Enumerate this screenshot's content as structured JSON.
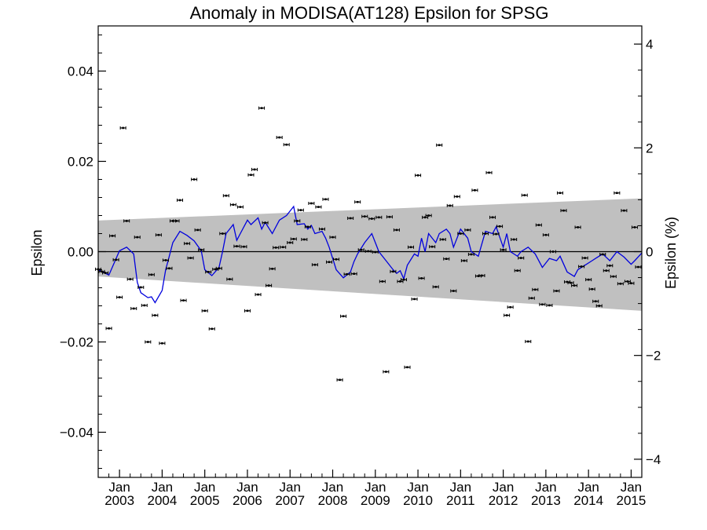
{
  "chart_data": {
    "type": "scatter",
    "title": "Anomaly in MODISA(AT128) Epsilon for SPSG",
    "ylabel_left": "Epsilon",
    "ylabel_right": "Epsilon (%)",
    "ylim": [
      -0.05,
      0.05
    ],
    "ylim_right_percent": [
      -4.35,
      4.35
    ],
    "xlim": [
      "2002-07",
      "2015-04"
    ],
    "left_ticks": [
      {
        "value": 0.04,
        "label": "0.04"
      },
      {
        "value": 0.02,
        "label": "0.02"
      },
      {
        "value": 0.0,
        "label": "0.00"
      },
      {
        "value": -0.02,
        "label": "−0.02"
      },
      {
        "value": -0.04,
        "label": "−0.04"
      }
    ],
    "right_ticks": [
      {
        "value": 4,
        "label": "4"
      },
      {
        "value": 2,
        "label": "2"
      },
      {
        "value": 0,
        "label": "0"
      },
      {
        "value": -2,
        "label": "−2"
      },
      {
        "value": -4,
        "label": "−4"
      }
    ],
    "x_ticks": [
      {
        "date": "2003-01",
        "month": "Jan",
        "year": "2003"
      },
      {
        "date": "2004-01",
        "month": "Jan",
        "year": "2004"
      },
      {
        "date": "2005-01",
        "month": "Jan",
        "year": "2005"
      },
      {
        "date": "2006-01",
        "month": "Jan",
        "year": "2006"
      },
      {
        "date": "2007-01",
        "month": "Jan",
        "year": "2007"
      },
      {
        "date": "2008-01",
        "month": "Jan",
        "year": "2008"
      },
      {
        "date": "2009-01",
        "month": "Jan",
        "year": "2009"
      },
      {
        "date": "2010-01",
        "month": "Jan",
        "year": "2010"
      },
      {
        "date": "2011-01",
        "month": "Jan",
        "year": "2011"
      },
      {
        "date": "2012-01",
        "month": "Jan",
        "year": "2012"
      },
      {
        "date": "2013-01",
        "month": "Jan",
        "year": "2013"
      },
      {
        "date": "2014-01",
        "month": "Jan",
        "year": "2014"
      },
      {
        "date": "2015-01",
        "month": "Jan",
        "year": "2015"
      }
    ],
    "band": {
      "color": "#c0c0c0",
      "start": {
        "x": "2002-07",
        "upper": 0.0069,
        "lower": -0.0055
      },
      "end": {
        "x": "2015-04",
        "upper": 0.0118,
        "lower": -0.0131
      }
    },
    "zero_line": 0.0,
    "colors": {
      "points": "#000000",
      "smooth_line": "#0000dd",
      "band": "#c0c0c0"
    },
    "points": [
      {
        "x": "2002-07",
        "y": -0.0039
      },
      {
        "x": "2002-08",
        "y": -0.0044
      },
      {
        "x": "2002-09",
        "y": -0.0047
      },
      {
        "x": "2002-10",
        "y": -0.017
      },
      {
        "x": "2002-11",
        "y": 0.0035
      },
      {
        "x": "2002-12",
        "y": -0.0018
      },
      {
        "x": "2003-01",
        "y": -0.0101
      },
      {
        "x": "2003-02",
        "y": 0.0274
      },
      {
        "x": "2003-03",
        "y": 0.0068
      },
      {
        "x": "2003-04",
        "y": -0.0061
      },
      {
        "x": "2003-05",
        "y": -0.0126
      },
      {
        "x": "2003-06",
        "y": 0.0032
      },
      {
        "x": "2003-07",
        "y": -0.0079
      },
      {
        "x": "2003-08",
        "y": -0.0119
      },
      {
        "x": "2003-09",
        "y": -0.02
      },
      {
        "x": "2003-10",
        "y": -0.0051
      },
      {
        "x": "2003-11",
        "y": -0.0141
      },
      {
        "x": "2003-12",
        "y": 0.0037
      },
      {
        "x": "2004-01",
        "y": -0.0203
      },
      {
        "x": "2004-02",
        "y": -0.0019
      },
      {
        "x": "2004-03",
        "y": -0.0037
      },
      {
        "x": "2004-04",
        "y": 0.0068
      },
      {
        "x": "2004-05",
        "y": 0.0068
      },
      {
        "x": "2004-06",
        "y": 0.0114
      },
      {
        "x": "2004-07",
        "y": -0.0108
      },
      {
        "x": "2004-08",
        "y": 0.0018
      },
      {
        "x": "2004-09",
        "y": -0.0014
      },
      {
        "x": "2004-10",
        "y": 0.016
      },
      {
        "x": "2004-11",
        "y": 0.0048
      },
      {
        "x": "2004-12",
        "y": 0.0004
      },
      {
        "x": "2005-01",
        "y": -0.0131
      },
      {
        "x": "2005-02",
        "y": -0.0045
      },
      {
        "x": "2005-03",
        "y": -0.0171
      },
      {
        "x": "2005-04",
        "y": -0.0039
      },
      {
        "x": "2005-05",
        "y": -0.0037
      },
      {
        "x": "2005-06",
        "y": 0.004
      },
      {
        "x": "2005-07",
        "y": 0.0124
      },
      {
        "x": "2005-08",
        "y": -0.0061
      },
      {
        "x": "2005-09",
        "y": 0.0104
      },
      {
        "x": "2005-10",
        "y": 0.0012
      },
      {
        "x": "2005-11",
        "y": 0.0099
      },
      {
        "x": "2005-12",
        "y": 0.0011
      },
      {
        "x": "2006-01",
        "y": -0.0131
      },
      {
        "x": "2006-02",
        "y": 0.017
      },
      {
        "x": "2006-03",
        "y": 0.0182
      },
      {
        "x": "2006-04",
        "y": -0.0095
      },
      {
        "x": "2006-05",
        "y": 0.0318
      },
      {
        "x": "2006-06",
        "y": 0.0064
      },
      {
        "x": "2006-07",
        "y": -0.0075
      },
      {
        "x": "2006-08",
        "y": -0.0038
      },
      {
        "x": "2006-09",
        "y": 0.0009
      },
      {
        "x": "2006-10",
        "y": 0.0253
      },
      {
        "x": "2006-11",
        "y": 0.001
      },
      {
        "x": "2006-12",
        "y": 0.0237
      },
      {
        "x": "2007-01",
        "y": 0.002
      },
      {
        "x": "2007-02",
        "y": 0.0028
      },
      {
        "x": "2007-03",
        "y": 0.0068
      },
      {
        "x": "2007-04",
        "y": 0.0092
      },
      {
        "x": "2007-05",
        "y": 0.0027
      },
      {
        "x": "2007-06",
        "y": 0.0055
      },
      {
        "x": "2007-07",
        "y": 0.0107
      },
      {
        "x": "2007-08",
        "y": -0.0029
      },
      {
        "x": "2007-09",
        "y": 0.0099
      },
      {
        "x": "2007-10",
        "y": 0.005
      },
      {
        "x": "2007-11",
        "y": 0.0116
      },
      {
        "x": "2007-12",
        "y": -0.0023
      },
      {
        "x": "2008-01",
        "y": 0.0032
      },
      {
        "x": "2008-02",
        "y": -0.0017
      },
      {
        "x": "2008-03",
        "y": -0.0284
      },
      {
        "x": "2008-04",
        "y": -0.0143
      },
      {
        "x": "2008-05",
        "y": -0.005
      },
      {
        "x": "2008-06",
        "y": 0.0074
      },
      {
        "x": "2008-07",
        "y": -0.0049
      },
      {
        "x": "2008-08",
        "y": 0.011
      },
      {
        "x": "2008-09",
        "y": 0.0004
      },
      {
        "x": "2008-10",
        "y": 0.0078
      },
      {
        "x": "2008-11",
        "y": 0.0001
      },
      {
        "x": "2008-12",
        "y": 0.0073
      },
      {
        "x": "2009-01",
        "y": -0.0001
      },
      {
        "x": "2009-02",
        "y": 0.0076
      },
      {
        "x": "2009-03",
        "y": -0.0066
      },
      {
        "x": "2009-04",
        "y": -0.0266
      },
      {
        "x": "2009-05",
        "y": 0.0077
      },
      {
        "x": "2009-06",
        "y": -0.0044
      },
      {
        "x": "2009-07",
        "y": 0.0048
      },
      {
        "x": "2009-08",
        "y": -0.0066
      },
      {
        "x": "2009-09",
        "y": -0.0062
      },
      {
        "x": "2009-10",
        "y": -0.0256
      },
      {
        "x": "2009-11",
        "y": 0.001
      },
      {
        "x": "2009-12",
        "y": -0.0105
      },
      {
        "x": "2010-01",
        "y": 0.0169
      },
      {
        "x": "2010-02",
        "y": -0.0059
      },
      {
        "x": "2010-03",
        "y": 0.0076
      },
      {
        "x": "2010-04",
        "y": 0.008
      },
      {
        "x": "2010-05",
        "y": 0.0011
      },
      {
        "x": "2010-06",
        "y": -0.0078
      },
      {
        "x": "2010-07",
        "y": 0.0236
      },
      {
        "x": "2010-08",
        "y": 0.0027
      },
      {
        "x": "2010-09",
        "y": -0.0016
      },
      {
        "x": "2010-10",
        "y": 0.0102
      },
      {
        "x": "2010-11",
        "y": -0.0087
      },
      {
        "x": "2010-12",
        "y": 0.0122
      },
      {
        "x": "2011-01",
        "y": 0.004
      },
      {
        "x": "2011-02",
        "y": -0.002
      },
      {
        "x": "2011-03",
        "y": 0.0048
      },
      {
        "x": "2011-04",
        "y": -0.0006
      },
      {
        "x": "2011-05",
        "y": 0.0136
      },
      {
        "x": "2011-06",
        "y": -0.0054
      },
      {
        "x": "2011-07",
        "y": -0.0053
      },
      {
        "x": "2011-08",
        "y": 0.004
      },
      {
        "x": "2011-09",
        "y": 0.0175
      },
      {
        "x": "2011-10",
        "y": 0.0076
      },
      {
        "x": "2011-11",
        "y": 0.0039
      },
      {
        "x": "2011-12",
        "y": 0.0056
      },
      {
        "x": "2012-01",
        "y": 0.0004
      },
      {
        "x": "2012-02",
        "y": -0.0141
      },
      {
        "x": "2012-03",
        "y": -0.0123
      },
      {
        "x": "2012-04",
        "y": 0.0027
      },
      {
        "x": "2012-05",
        "y": -0.0042
      },
      {
        "x": "2012-06",
        "y": -0.0014
      },
      {
        "x": "2012-07",
        "y": 0.0125
      },
      {
        "x": "2012-08",
        "y": -0.0199
      },
      {
        "x": "2012-09",
        "y": -0.0103
      },
      {
        "x": "2012-10",
        "y": -0.0084
      },
      {
        "x": "2012-11",
        "y": 0.0059
      },
      {
        "x": "2012-12",
        "y": -0.0117
      },
      {
        "x": "2013-01",
        "y": 0.0037
      },
      {
        "x": "2013-02",
        "y": -0.0119
      },
      {
        "x": "2013-03",
        "y": 0.0
      },
      {
        "x": "2013-04",
        "y": -0.0087
      },
      {
        "x": "2013-05",
        "y": 0.013
      },
      {
        "x": "2013-06",
        "y": 0.0091
      },
      {
        "x": "2013-07",
        "y": -0.0067
      },
      {
        "x": "2013-08",
        "y": -0.0069
      },
      {
        "x": "2013-09",
        "y": -0.0075
      },
      {
        "x": "2013-10",
        "y": 0.0054
      },
      {
        "x": "2013-11",
        "y": -0.0033
      },
      {
        "x": "2013-12",
        "y": -0.0014
      },
      {
        "x": "2014-01",
        "y": -0.0062
      },
      {
        "x": "2014-02",
        "y": -0.0083
      },
      {
        "x": "2014-03",
        "y": -0.011
      },
      {
        "x": "2014-04",
        "y": -0.012
      },
      {
        "x": "2014-05",
        "y": -0.0006
      },
      {
        "x": "2014-06",
        "y": -0.0042
      },
      {
        "x": "2014-07",
        "y": -0.0031
      },
      {
        "x": "2014-08",
        "y": -0.0055
      },
      {
        "x": "2014-09",
        "y": 0.013
      },
      {
        "x": "2014-10",
        "y": -0.0071
      },
      {
        "x": "2014-11",
        "y": 0.0091
      },
      {
        "x": "2014-12",
        "y": -0.0066
      },
      {
        "x": "2015-01",
        "y": -0.007
      },
      {
        "x": "2015-02",
        "y": 0.0054
      },
      {
        "x": "2015-03",
        "y": -0.0034
      }
    ],
    "smooth": [
      {
        "x": "2002-07",
        "y": -0.004
      },
      {
        "x": "2002-10",
        "y": -0.0052
      },
      {
        "x": "2003-01",
        "y": 0.0002
      },
      {
        "x": "2003-03",
        "y": 0.001
      },
      {
        "x": "2003-05",
        "y": -0.0005
      },
      {
        "x": "2003-06",
        "y": -0.0068
      },
      {
        "x": "2003-07",
        "y": -0.0091
      },
      {
        "x": "2003-09",
        "y": -0.0102
      },
      {
        "x": "2003-10",
        "y": -0.01
      },
      {
        "x": "2003-11",
        "y": -0.0113
      },
      {
        "x": "2004-01",
        "y": -0.0086
      },
      {
        "x": "2004-02",
        "y": -0.004
      },
      {
        "x": "2004-03",
        "y": -0.001
      },
      {
        "x": "2004-04",
        "y": 0.002
      },
      {
        "x": "2004-06",
        "y": 0.0045
      },
      {
        "x": "2004-08",
        "y": 0.0036
      },
      {
        "x": "2004-10",
        "y": 0.0024
      },
      {
        "x": "2004-12",
        "y": 0.0002
      },
      {
        "x": "2005-01",
        "y": -0.004
      },
      {
        "x": "2005-03",
        "y": -0.0053
      },
      {
        "x": "2005-05",
        "y": -0.0035
      },
      {
        "x": "2005-06",
        "y": 0.0
      },
      {
        "x": "2005-07",
        "y": 0.004
      },
      {
        "x": "2005-09",
        "y": 0.006
      },
      {
        "x": "2005-10",
        "y": 0.0025
      },
      {
        "x": "2005-11",
        "y": 0.004
      },
      {
        "x": "2006-01",
        "y": 0.007
      },
      {
        "x": "2006-02",
        "y": 0.006
      },
      {
        "x": "2006-04",
        "y": 0.0075
      },
      {
        "x": "2006-05",
        "y": 0.005
      },
      {
        "x": "2006-06",
        "y": 0.0065
      },
      {
        "x": "2006-08",
        "y": 0.004
      },
      {
        "x": "2006-10",
        "y": 0.007
      },
      {
        "x": "2006-12",
        "y": 0.008
      },
      {
        "x": "2007-02",
        "y": 0.01
      },
      {
        "x": "2007-03",
        "y": 0.006
      },
      {
        "x": "2007-05",
        "y": 0.0062
      },
      {
        "x": "2007-06",
        "y": 0.005
      },
      {
        "x": "2007-07",
        "y": 0.0058
      },
      {
        "x": "2007-08",
        "y": 0.004
      },
      {
        "x": "2007-10",
        "y": 0.0045
      },
      {
        "x": "2007-11",
        "y": 0.003
      },
      {
        "x": "2007-12",
        "y": 0.001
      },
      {
        "x": "2008-02",
        "y": -0.004
      },
      {
        "x": "2008-04",
        "y": -0.0058
      },
      {
        "x": "2008-06",
        "y": -0.0045
      },
      {
        "x": "2008-07",
        "y": -0.0022
      },
      {
        "x": "2008-08",
        "y": -0.0005
      },
      {
        "x": "2008-10",
        "y": 0.002
      },
      {
        "x": "2008-12",
        "y": 0.004
      },
      {
        "x": "2009-01",
        "y": 0.002
      },
      {
        "x": "2009-02",
        "y": 0.0
      },
      {
        "x": "2009-04",
        "y": -0.002
      },
      {
        "x": "2009-06",
        "y": -0.004
      },
      {
        "x": "2009-07",
        "y": -0.0048
      },
      {
        "x": "2009-08",
        "y": -0.0042
      },
      {
        "x": "2009-09",
        "y": -0.006
      },
      {
        "x": "2009-10",
        "y": -0.003
      },
      {
        "x": "2009-12",
        "y": -0.0005
      },
      {
        "x": "2010-01",
        "y": -0.001
      },
      {
        "x": "2010-02",
        "y": 0.003
      },
      {
        "x": "2010-03",
        "y": 0.0
      },
      {
        "x": "2010-04",
        "y": 0.004
      },
      {
        "x": "2010-06",
        "y": 0.002
      },
      {
        "x": "2010-07",
        "y": 0.004
      },
      {
        "x": "2010-09",
        "y": 0.005
      },
      {
        "x": "2010-10",
        "y": 0.004
      },
      {
        "x": "2010-11",
        "y": 0.001
      },
      {
        "x": "2010-12",
        "y": 0.003
      },
      {
        "x": "2011-01",
        "y": 0.005
      },
      {
        "x": "2011-03",
        "y": 0.003
      },
      {
        "x": "2011-04",
        "y": 0.0
      },
      {
        "x": "2011-06",
        "y": -0.001
      },
      {
        "x": "2011-08",
        "y": 0.0045
      },
      {
        "x": "2011-10",
        "y": 0.004
      },
      {
        "x": "2011-11",
        "y": 0.0055
      },
      {
        "x": "2012-01",
        "y": 0.001
      },
      {
        "x": "2012-02",
        "y": 0.004
      },
      {
        "x": "2012-03",
        "y": 0.0
      },
      {
        "x": "2012-05",
        "y": -0.001
      },
      {
        "x": "2012-06",
        "y": 0.0
      },
      {
        "x": "2012-08",
        "y": 0.001
      },
      {
        "x": "2012-10",
        "y": -0.0005
      },
      {
        "x": "2012-12",
        "y": -0.0035
      },
      {
        "x": "2013-02",
        "y": -0.0015
      },
      {
        "x": "2013-04",
        "y": -0.002
      },
      {
        "x": "2013-05",
        "y": -0.001
      },
      {
        "x": "2013-07",
        "y": -0.0045
      },
      {
        "x": "2013-09",
        "y": -0.0055
      },
      {
        "x": "2013-10",
        "y": -0.004
      },
      {
        "x": "2013-12",
        "y": -0.003
      },
      {
        "x": "2014-02",
        "y": -0.002
      },
      {
        "x": "2014-03",
        "y": -0.0015
      },
      {
        "x": "2014-05",
        "y": -0.0005
      },
      {
        "x": "2014-07",
        "y": -0.002
      },
      {
        "x": "2014-09",
        "y": 0.0
      },
      {
        "x": "2014-11",
        "y": -0.0012
      },
      {
        "x": "2015-01",
        "y": -0.0028
      },
      {
        "x": "2015-02",
        "y": -0.002
      },
      {
        "x": "2015-04",
        "y": -0.0003
      }
    ]
  }
}
